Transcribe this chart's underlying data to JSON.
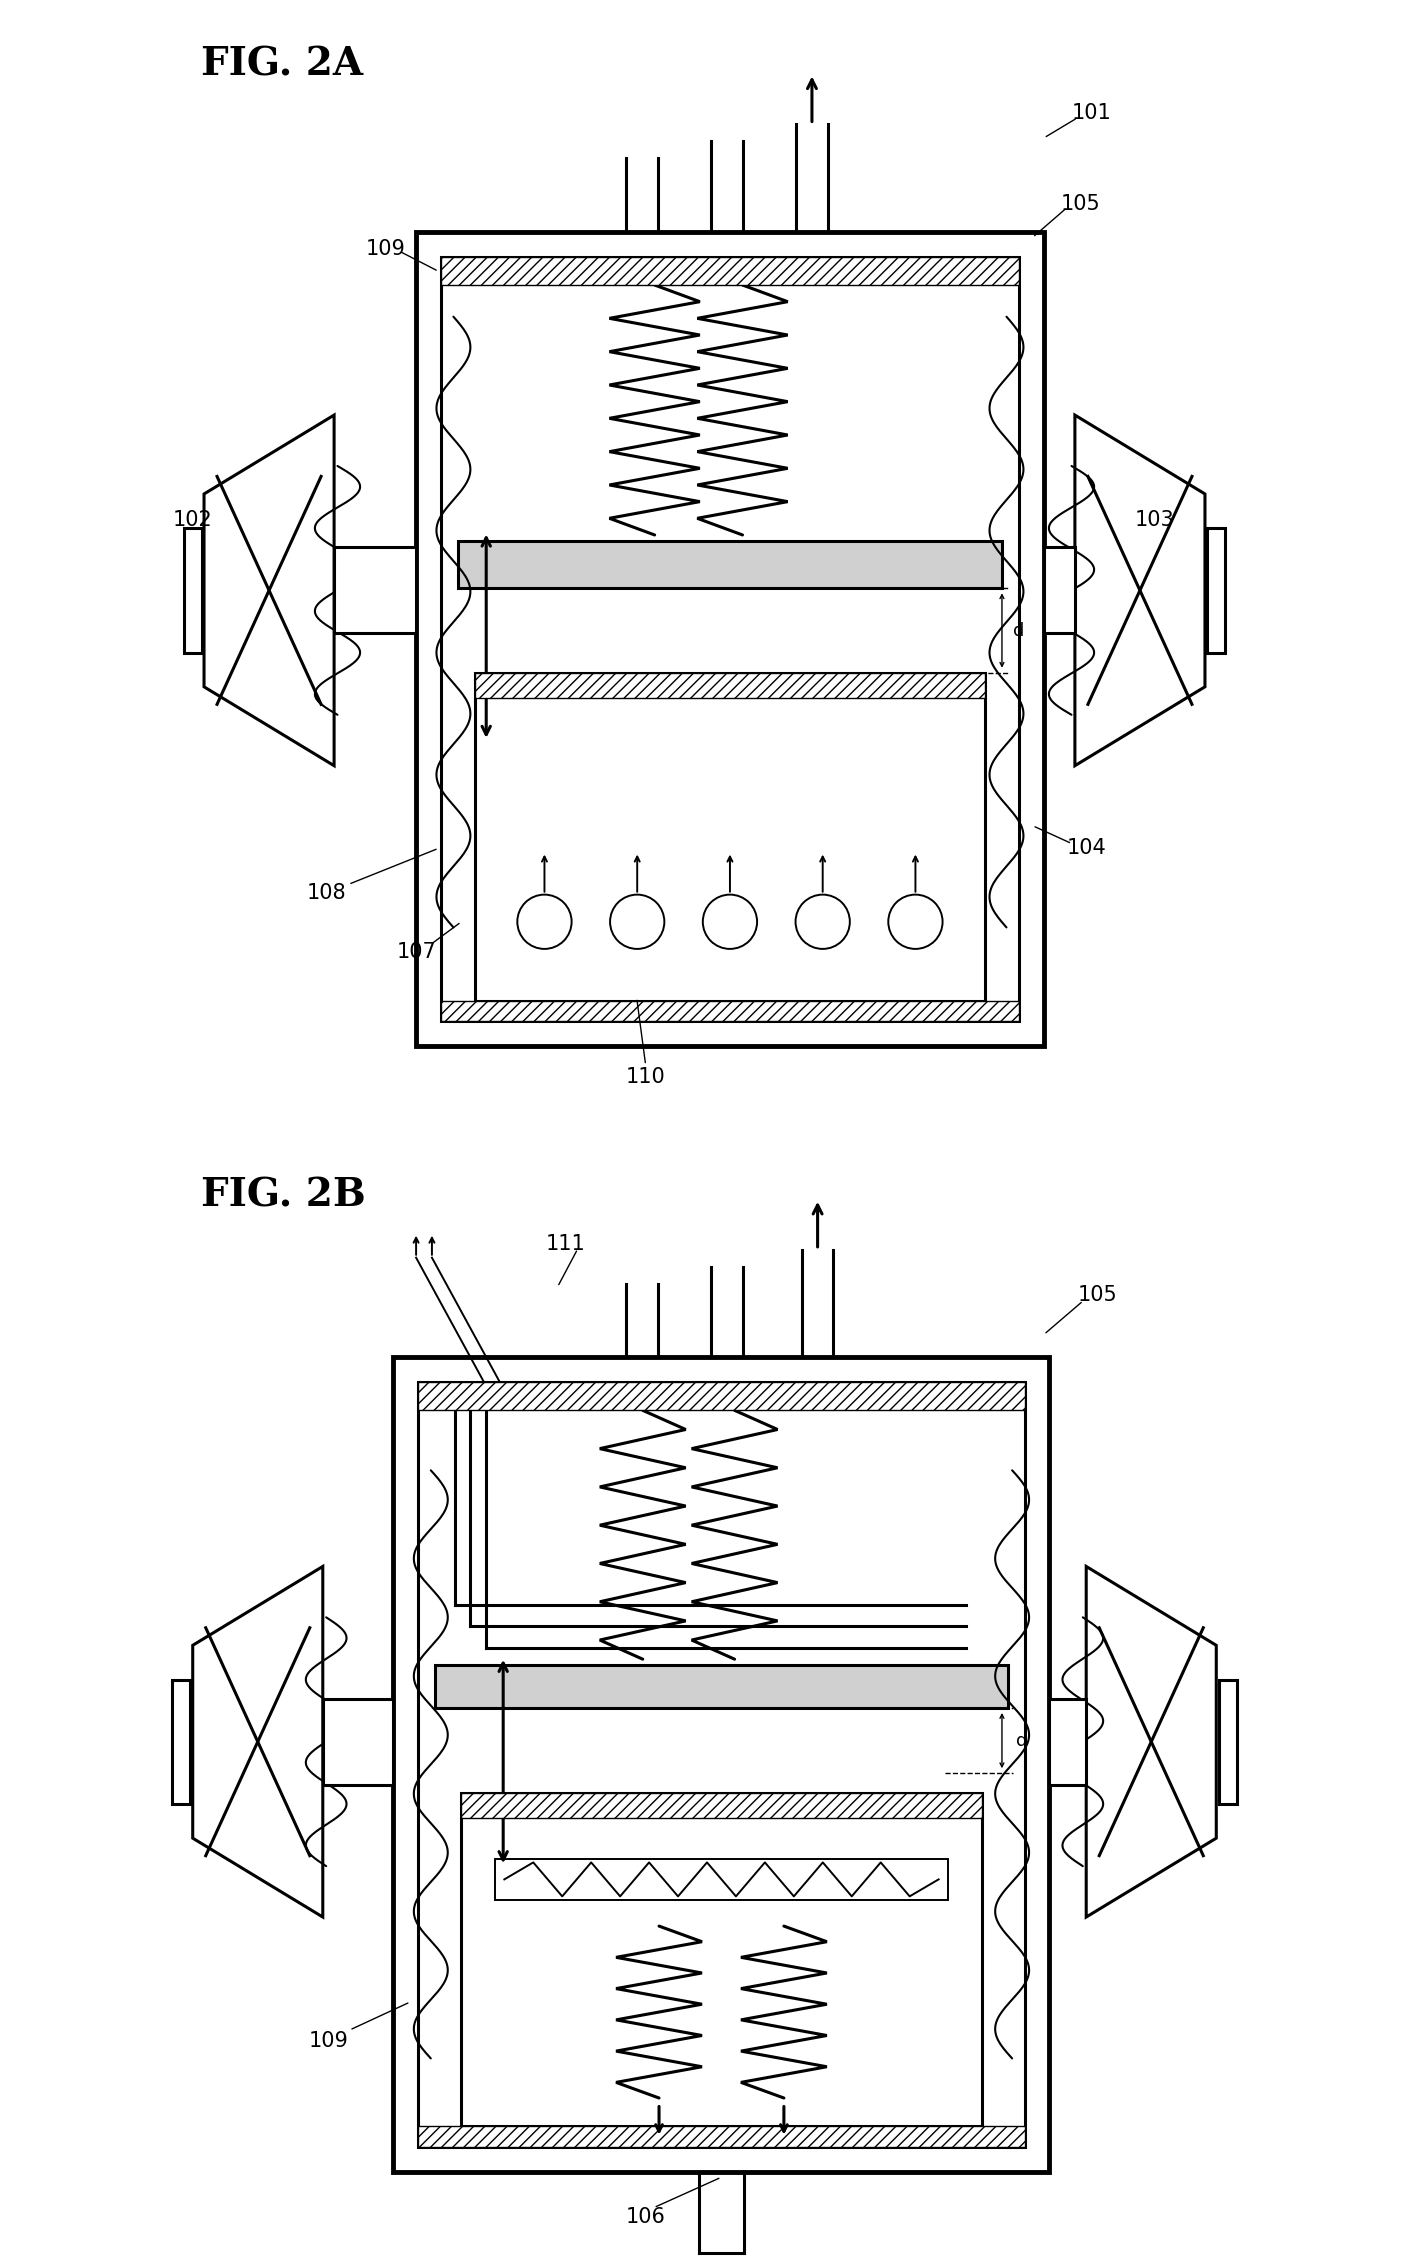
{
  "fig_title_a": "FIG. 2A",
  "fig_title_b": "FIG. 2B",
  "bg_color": "#ffffff",
  "lc": "#000000",
  "label_fs": 15,
  "title_fs": 28
}
